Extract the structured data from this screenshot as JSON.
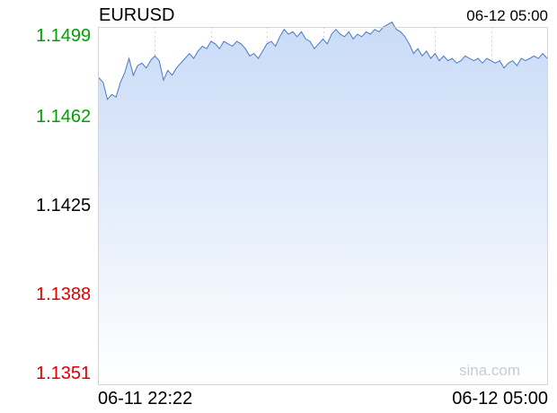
{
  "chart_data": {
    "type": "area",
    "title": "EURUSD",
    "timestamp": "06-12 05:00",
    "x_start": "06-11 22:22",
    "x_end": "06-12 05:00",
    "ylim": [
      1.1351,
      1.1499
    ],
    "y_ticks": [
      "1.1499",
      "1.1462",
      "1.1425",
      "1.1388",
      "1.1351"
    ],
    "reference": 1.1425,
    "watermark": "sina.com",
    "colors": {
      "line": "#4a78c8",
      "fill_top": "#c9dbf7",
      "fill_bottom": "#ffffff",
      "up": "#00a000",
      "down": "#e00000",
      "neutral": "#000000",
      "grid": "#d2d6dc"
    },
    "series": [
      {
        "values": [
          1.1478,
          1.1476,
          1.1469,
          1.1471,
          1.147,
          1.1476,
          1.148,
          1.1486,
          1.1479,
          1.1483,
          1.1484,
          1.1482,
          1.1485,
          1.1487,
          1.1485,
          1.1477,
          1.1481,
          1.1479,
          1.1482,
          1.1484,
          1.1486,
          1.1488,
          1.1486,
          1.1489,
          1.1491,
          1.149,
          1.1493,
          1.1492,
          1.149,
          1.1493,
          1.1492,
          1.1491,
          1.1493,
          1.1492,
          1.149,
          1.1487,
          1.1488,
          1.1486,
          1.1489,
          1.1492,
          1.1493,
          1.1491,
          1.1495,
          1.1498,
          1.1496,
          1.1497,
          1.1495,
          1.1497,
          1.1494,
          1.1493,
          1.149,
          1.1492,
          1.1494,
          1.1492,
          1.1496,
          1.1498,
          1.1496,
          1.1495,
          1.1497,
          1.1494,
          1.1496,
          1.1495,
          1.1497,
          1.1496,
          1.1498,
          1.1497,
          1.1499,
          1.15,
          1.1501,
          1.1498,
          1.1497,
          1.1495,
          1.1492,
          1.1488,
          1.149,
          1.1487,
          1.1489,
          1.1486,
          1.1488,
          1.1485,
          1.1487,
          1.1485,
          1.1486,
          1.1484,
          1.1485,
          1.1487,
          1.1486,
          1.1485,
          1.1486,
          1.1484,
          1.1486,
          1.1485,
          1.1484,
          1.1485,
          1.1482,
          1.1484,
          1.1485,
          1.1483,
          1.1486,
          1.1485,
          1.1486,
          1.1487,
          1.1486,
          1.1488,
          1.1486
        ]
      }
    ]
  }
}
